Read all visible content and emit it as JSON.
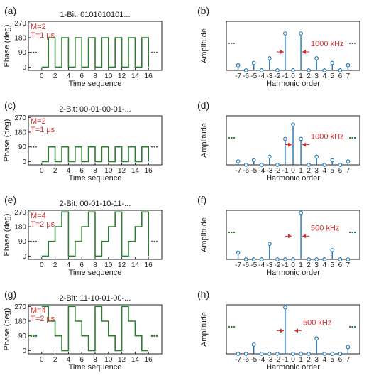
{
  "colors": {
    "phase": "#2e7d32",
    "stem": "#1f77b4",
    "annot": "#d32f2f",
    "axis": "#222222",
    "dots_black": "#333333",
    "dots_green": "#2e7d32"
  },
  "chart_data": [
    {
      "panel": "(a)",
      "type": "line",
      "title": "1-Bit: 0101010101...",
      "xlabel": "Time sequence",
      "ylabel": "Phase (deg)",
      "xticks": [
        0,
        2,
        4,
        6,
        8,
        10,
        12,
        14,
        16
      ],
      "yticks": [
        0,
        90,
        180,
        270
      ],
      "xlim": [
        -2,
        18
      ],
      "ylim": [
        -20,
        280
      ],
      "annotation": [
        "M=2",
        "T=1 μs"
      ],
      "x": [
        0,
        1,
        2,
        3,
        4,
        5,
        6,
        7,
        8,
        9,
        10,
        11,
        12,
        13,
        14,
        15,
        16
      ],
      "y": [
        0,
        180,
        0,
        180,
        0,
        180,
        0,
        180,
        0,
        180,
        0,
        180,
        0,
        180,
        0,
        180,
        0
      ],
      "ellipsis_y": 90,
      "ellipsis_style": "dots_black"
    },
    {
      "panel": "(b)",
      "type": "stem",
      "xlabel": "Harmonic order",
      "ylabel": "Amplitude",
      "xticks": [
        -7,
        -6,
        -5,
        -4,
        -3,
        -2,
        -1,
        0,
        1,
        2,
        3,
        4,
        5,
        6,
        7
      ],
      "xlim": [
        -8.5,
        8.5
      ],
      "ylim": [
        0,
        0.85
      ],
      "x": [
        -7,
        -6,
        -5,
        -4,
        -3,
        -2,
        -1,
        0,
        1,
        2,
        3,
        4,
        5,
        6,
        7
      ],
      "y": [
        0.09,
        0.0,
        0.13,
        0.0,
        0.21,
        0.0,
        0.64,
        0.0,
        0.64,
        0.0,
        0.21,
        0.0,
        0.13,
        0.0,
        0.09
      ],
      "annotation": "1000 kHz",
      "arrows_between": [
        -1,
        1
      ],
      "ellipsis_style": "dots_black"
    },
    {
      "panel": "(c)",
      "type": "line",
      "title": "2-Bit: 00-01-00-01-...",
      "xlabel": "Time sequence",
      "ylabel": "Phase (deg)",
      "xticks": [
        0,
        2,
        4,
        6,
        8,
        10,
        12,
        14,
        16
      ],
      "yticks": [
        0,
        90,
        180,
        270
      ],
      "xlim": [
        -2,
        18
      ],
      "ylim": [
        -20,
        280
      ],
      "annotation": [
        "M=2",
        "T=1 μs"
      ],
      "x": [
        0,
        1,
        2,
        3,
        4,
        5,
        6,
        7,
        8,
        9,
        10,
        11,
        12,
        13,
        14,
        15,
        16
      ],
      "y": [
        0,
        90,
        0,
        90,
        0,
        90,
        0,
        90,
        0,
        90,
        0,
        90,
        0,
        90,
        0,
        90,
        0
      ],
      "ellipsis_y": 90,
      "ellipsis_style": "dots_black"
    },
    {
      "panel": "(d)",
      "type": "stem",
      "xlabel": "Harmonic order",
      "ylabel": "Amplitude",
      "xticks": [
        -7,
        -6,
        -5,
        -4,
        -3,
        -2,
        -1,
        0,
        1,
        2,
        3,
        4,
        5,
        6,
        7
      ],
      "xlim": [
        -8.5,
        8.5
      ],
      "ylim": [
        0,
        0.85
      ],
      "x": [
        -7,
        -6,
        -5,
        -4,
        -3,
        -2,
        -1,
        0,
        1,
        2,
        3,
        4,
        5,
        6,
        7
      ],
      "y": [
        0.06,
        0.0,
        0.08,
        0.0,
        0.14,
        0.0,
        0.45,
        0.7,
        0.45,
        0.0,
        0.14,
        0.0,
        0.08,
        0.0,
        0.06
      ],
      "annotation": "1000 kHz",
      "arrows_between": [
        0,
        1
      ],
      "ellipsis_style": "dots_green"
    },
    {
      "panel": "(e)",
      "type": "line",
      "title": "2-Bit: 00-01-10-11-...",
      "xlabel": "Time sequence",
      "ylabel": "Phase (deg)",
      "xticks": [
        0,
        2,
        4,
        6,
        8,
        10,
        12,
        14,
        16
      ],
      "yticks": [
        0,
        90,
        180,
        270
      ],
      "xlim": [
        -2,
        18
      ],
      "ylim": [
        -20,
        280
      ],
      "annotation": [
        "M=4",
        "T=2 μs"
      ],
      "x": [
        0,
        1,
        2,
        3,
        4,
        5,
        6,
        7,
        8,
        9,
        10,
        11,
        12,
        13,
        14,
        15,
        16
      ],
      "y": [
        0,
        90,
        180,
        270,
        0,
        90,
        180,
        270,
        0,
        90,
        180,
        270,
        0,
        90,
        180,
        270,
        0
      ],
      "ellipsis_y": 90,
      "ellipsis_style": "dots_black"
    },
    {
      "panel": "(f)",
      "type": "stem",
      "xlabel": "Harmonic order",
      "ylabel": "Amplitude",
      "xticks": [
        -7,
        -6,
        -5,
        -4,
        -3,
        -2,
        -1,
        0,
        1,
        2,
        3,
        4,
        5,
        6,
        7
      ],
      "xlim": [
        -8.5,
        8.5
      ],
      "ylim": [
        0,
        0.95
      ],
      "x": [
        -7,
        -6,
        -5,
        -4,
        -3,
        -2,
        -1,
        0,
        1,
        2,
        3,
        4,
        5,
        6,
        7
      ],
      "y": [
        0.13,
        0.0,
        0.0,
        0.0,
        0.3,
        0.0,
        0.0,
        0.0,
        0.9,
        0.0,
        0.0,
        0.0,
        0.18,
        0.0,
        0.0
      ],
      "annotation": "500 kHz",
      "arrows_between": [
        0,
        1
      ],
      "ellipsis_style": "dots_green"
    },
    {
      "panel": "(g)",
      "type": "line",
      "title": "2-Bit: 11-10-01-00-...",
      "xlabel": "Time sequence",
      "ylabel": "Phase (deg)",
      "xticks": [
        0,
        2,
        4,
        6,
        8,
        10,
        12,
        14,
        16
      ],
      "yticks": [
        0,
        90,
        180,
        270
      ],
      "xlim": [
        -2,
        18
      ],
      "ylim": [
        -20,
        280
      ],
      "annotation": [
        "M=4",
        "T=2 μs"
      ],
      "x": [
        0,
        1,
        2,
        3,
        4,
        5,
        6,
        7,
        8,
        9,
        10,
        11,
        12,
        13,
        14,
        15,
        16
      ],
      "y": [
        270,
        180,
        90,
        0,
        270,
        180,
        90,
        0,
        270,
        180,
        90,
        0,
        270,
        180,
        90,
        0,
        0
      ],
      "ellipsis_y": 90,
      "ellipsis_style": "dots_green"
    },
    {
      "panel": "(h)",
      "type": "stem",
      "xlabel": "Harmonic order",
      "ylabel": "Amplitude",
      "xticks": [
        -7,
        -6,
        -5,
        -4,
        -3,
        -2,
        -1,
        0,
        1,
        2,
        3,
        4,
        5,
        6,
        7
      ],
      "xlim": [
        -8.5,
        8.5
      ],
      "ylim": [
        0,
        0.95
      ],
      "x": [
        -7,
        -6,
        -5,
        -4,
        -3,
        -2,
        -1,
        0,
        1,
        2,
        3,
        4,
        5,
        6,
        7
      ],
      "y": [
        0.0,
        0.0,
        0.18,
        0.0,
        0.0,
        0.0,
        0.9,
        0.0,
        0.0,
        0.0,
        0.3,
        0.0,
        0.0,
        0.0,
        0.13
      ],
      "annotation": "500 kHz",
      "arrows_between": [
        -1,
        0
      ],
      "ellipsis_style": "dots_green"
    }
  ]
}
